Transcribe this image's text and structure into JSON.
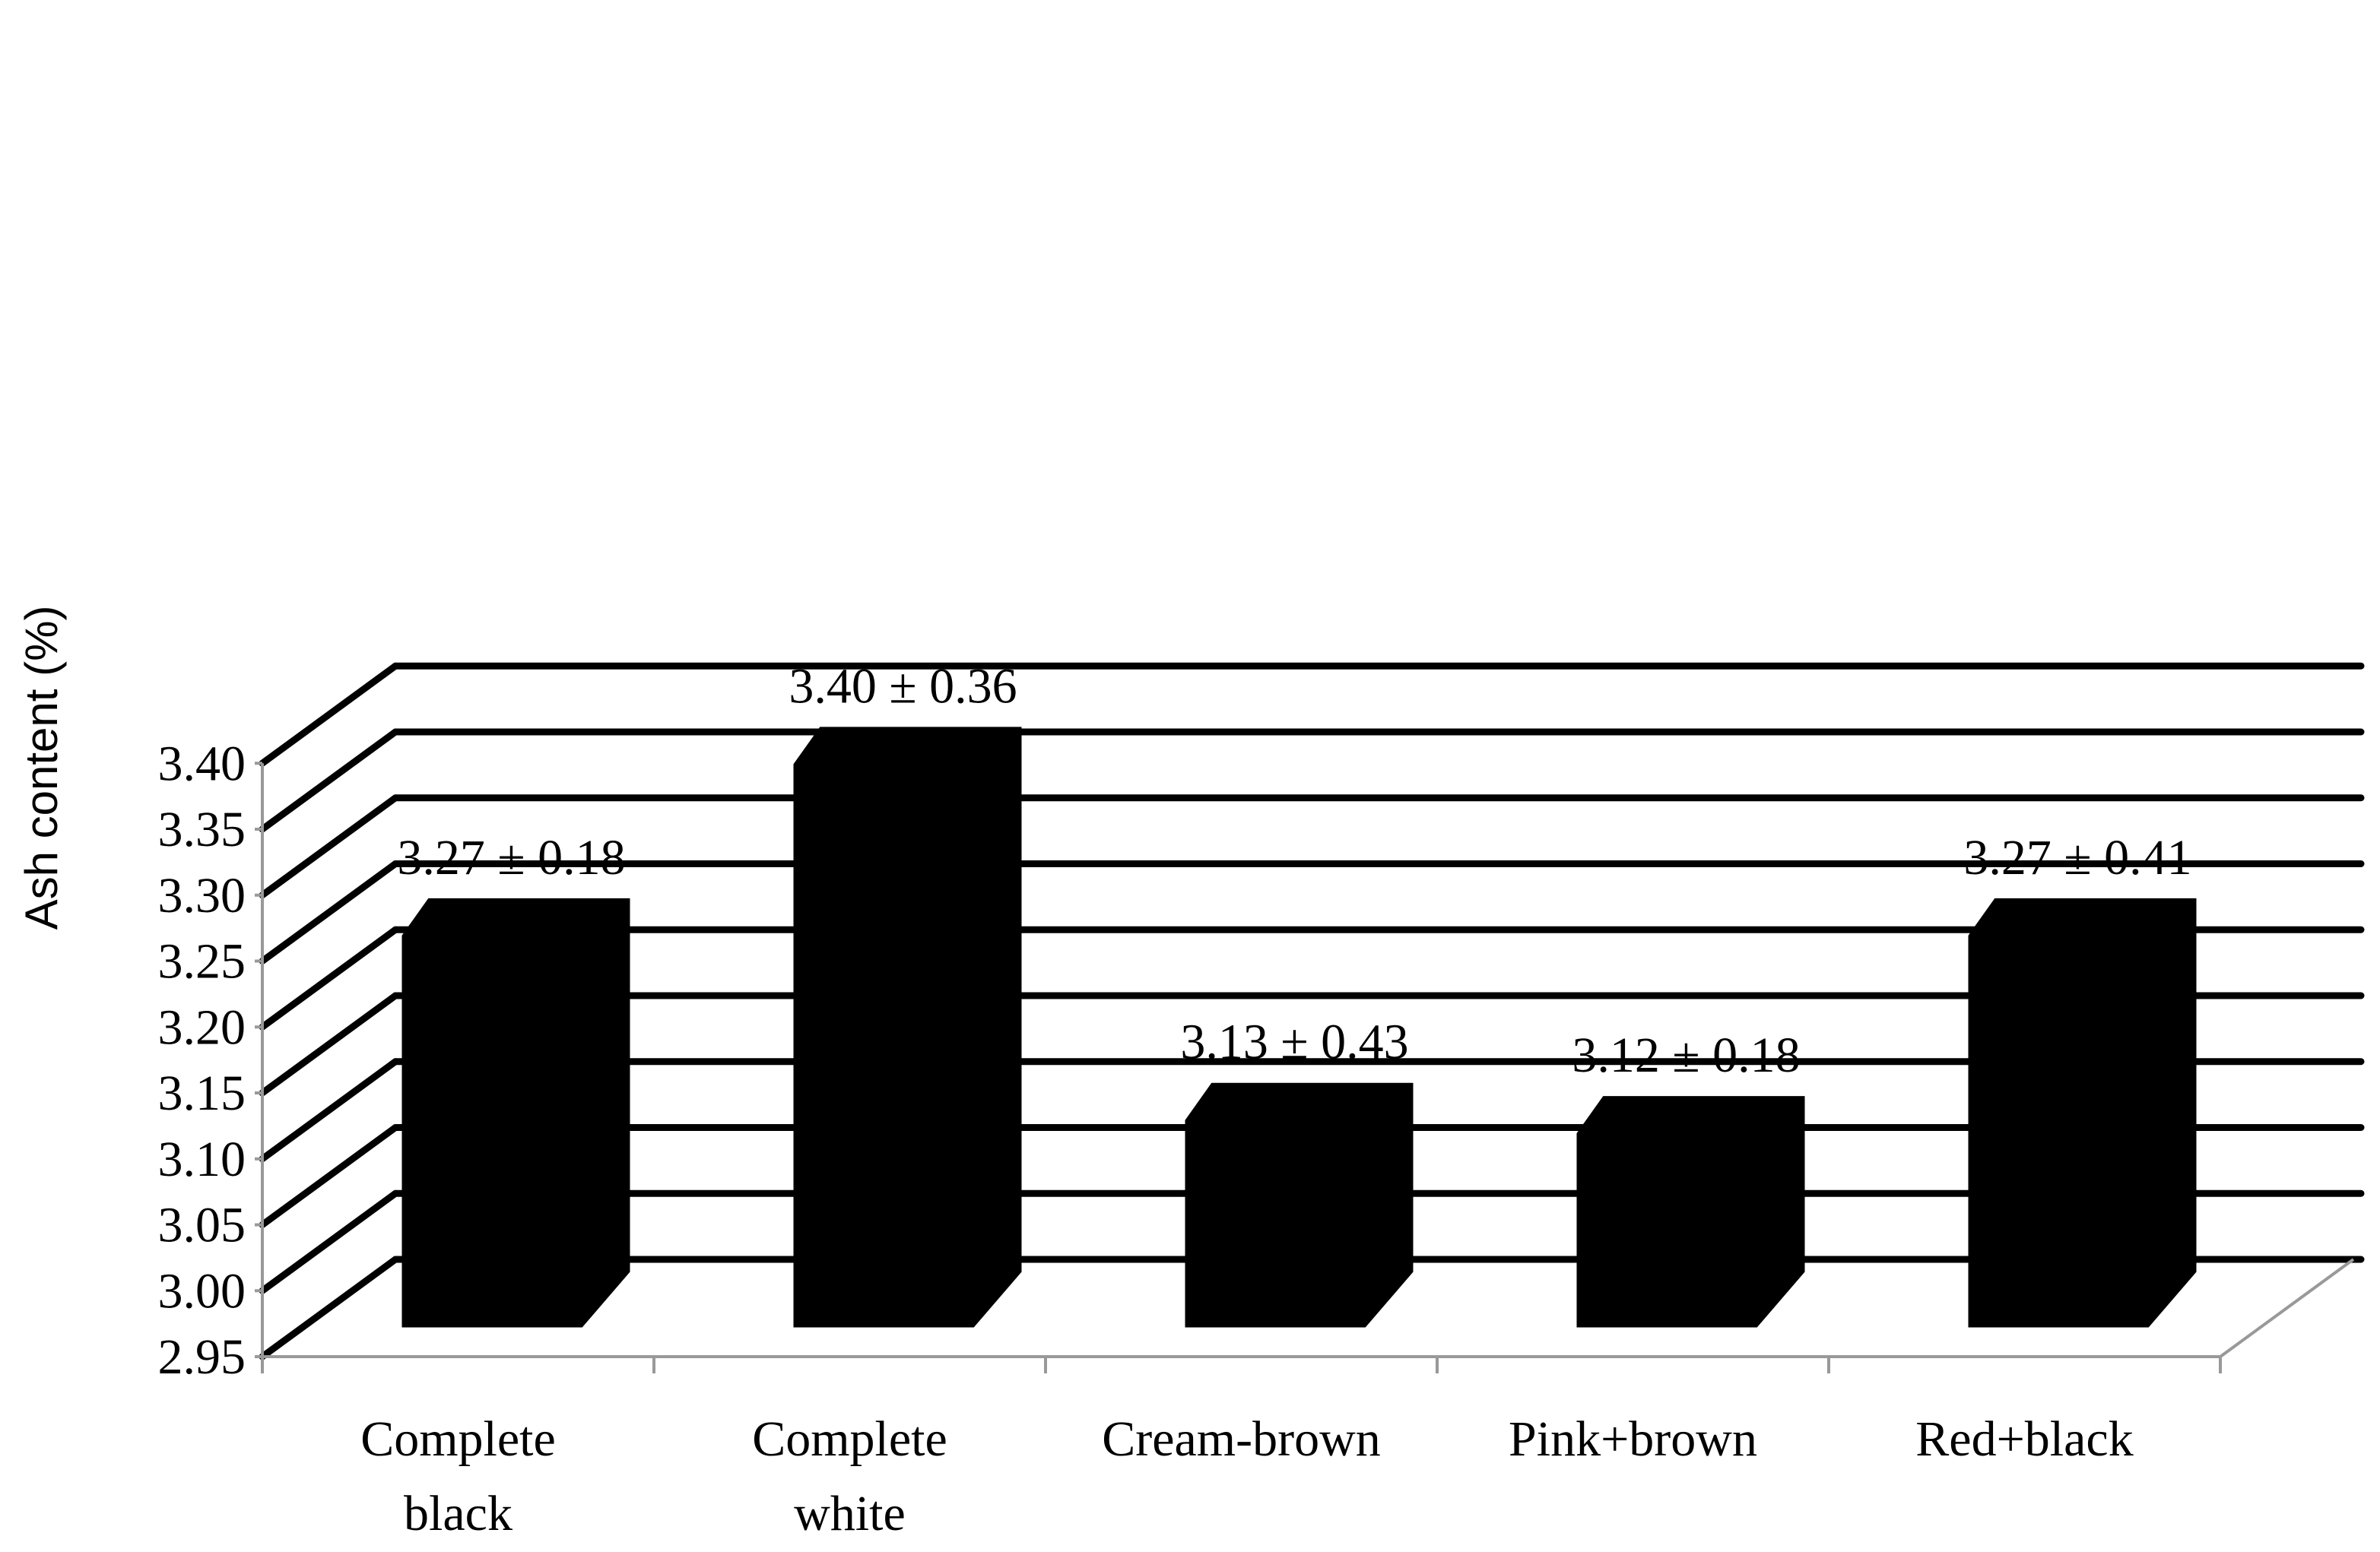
{
  "chart_data": {
    "type": "bar",
    "style": "3d-column",
    "categories": [
      "Complete\nblack",
      "Complete\nwhite",
      "Cream-brown",
      "Pink+brown",
      "Red+black"
    ],
    "values": [
      3.27,
      3.4,
      3.13,
      3.12,
      3.27
    ],
    "data_labels": [
      "3.27 ± 0.18",
      "3.40 ± 0.36",
      "3.13 ± 0.43",
      "3.12 ± 0.18",
      "3.27 ± 0.41"
    ],
    "title": "",
    "xlabel": "",
    "ylabel": "Ash content (%)",
    "ylim": [
      2.95,
      3.4
    ],
    "yticks": [
      "2.95",
      "3.00",
      "3.05",
      "3.10",
      "3.15",
      "3.20",
      "3.25",
      "3.30",
      "3.35",
      "3.40"
    ],
    "grid": true,
    "legend": "none",
    "colors": {
      "bar": "#000000",
      "grid": "#000000",
      "axis": "#999999",
      "background": "#ffffff"
    }
  }
}
